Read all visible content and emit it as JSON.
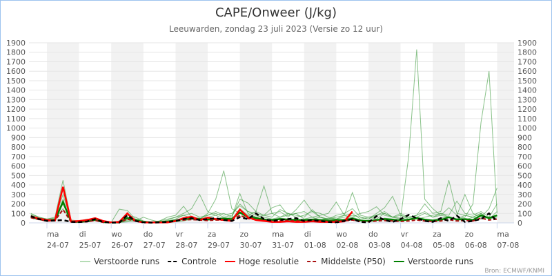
{
  "chart_data": {
    "type": "line",
    "title": "CAPE/Onweer (J/kg)",
    "subtitle": "Leeuwarden, zondag 23 juli 2023 (Versie zo 12 uur)",
    "source": "Bron: ECMWF/KNMI",
    "ylim": [
      0,
      1900
    ],
    "y_ticks": [
      0,
      100,
      200,
      300,
      400,
      500,
      600,
      700,
      800,
      900,
      1000,
      1100,
      1200,
      1300,
      1400,
      1500,
      1600,
      1700,
      1800,
      1900
    ],
    "grid": true,
    "legend_placement": "bottom",
    "time_start": "23-07 12 uur",
    "time_step_hours": 6,
    "x_ticks": [
      {
        "day": "ma",
        "date": "24-07",
        "shaded": true
      },
      {
        "day": "di",
        "date": "25-07",
        "shaded": false
      },
      {
        "day": "wo",
        "date": "26-07",
        "shaded": true
      },
      {
        "day": "do",
        "date": "27-07",
        "shaded": false
      },
      {
        "day": "vr",
        "date": "28-07",
        "shaded": true
      },
      {
        "day": "za",
        "date": "29-07",
        "shaded": false
      },
      {
        "day": "zo",
        "date": "30-07",
        "shaded": true
      },
      {
        "day": "ma",
        "date": "31-07",
        "shaded": false
      },
      {
        "day": "di",
        "date": "01-08",
        "shaded": true
      },
      {
        "day": "wo",
        "date": "02-08",
        "shaded": false
      },
      {
        "day": "do",
        "date": "03-08",
        "shaded": true
      },
      {
        "day": "vr",
        "date": "04-08",
        "shaded": false
      },
      {
        "day": "za",
        "date": "05-08",
        "shaded": true
      },
      {
        "day": "zo",
        "date": "06-08",
        "shaded": false
      },
      {
        "day": "ma",
        "date": "07-08",
        "shaded": true
      }
    ],
    "legend": [
      {
        "label": "Verstoorde runs",
        "color": "#b5dcb5",
        "style": "solid"
      },
      {
        "label": "Controle",
        "color": "#000000",
        "style": "dashed"
      },
      {
        "label": "Hoge resolutie",
        "color": "#ff0000",
        "style": "solid"
      },
      {
        "label": "Middelste (P50)",
        "color": "#aa1111",
        "style": "dashed"
      },
      {
        "label": "Verstoorde runs",
        "color": "#008000",
        "style": "solid"
      }
    ],
    "members": [
      [
        90,
        60,
        40,
        60,
        450,
        30,
        20,
        25,
        40,
        10,
        5,
        5,
        10,
        20,
        60,
        30,
        10,
        5,
        10,
        20,
        40,
        30,
        60,
        80,
        40,
        60,
        310,
        100,
        60,
        40,
        30,
        50,
        40,
        20,
        30,
        40,
        60,
        30,
        20,
        40,
        60,
        30,
        20,
        30,
        50,
        40,
        20,
        30,
        60,
        40,
        30,
        50,
        60,
        40,
        60,
        200,
        1060,
        1600,
        100
      ],
      [
        80,
        50,
        30,
        40,
        300,
        20,
        15,
        20,
        30,
        10,
        5,
        5,
        20,
        30,
        10,
        5,
        10,
        20,
        30,
        40,
        60,
        50,
        40,
        30,
        60,
        80,
        200,
        120,
        80,
        60,
        40,
        60,
        80,
        100,
        40,
        60,
        30,
        50,
        40,
        60,
        80,
        60,
        40,
        80,
        100,
        60,
        50,
        700,
        1830,
        250,
        150,
        80,
        60,
        40,
        30,
        60,
        100,
        40,
        60
      ],
      [
        60,
        40,
        30,
        30,
        250,
        15,
        10,
        30,
        40,
        15,
        5,
        5,
        30,
        40,
        20,
        10,
        10,
        20,
        40,
        80,
        50,
        40,
        100,
        250,
        550,
        150,
        100,
        80,
        120,
        390,
        100,
        60,
        100,
        80,
        60,
        140,
        60,
        40,
        80,
        100,
        150,
        60,
        40,
        100,
        160,
        280,
        80,
        60,
        40,
        60,
        80,
        100,
        60,
        40,
        80,
        60,
        40,
        60,
        80
      ],
      [
        70,
        50,
        40,
        40,
        200,
        20,
        20,
        40,
        30,
        10,
        5,
        145,
        130,
        40,
        10,
        5,
        20,
        60,
        80,
        175,
        60,
        40,
        80,
        100,
        60,
        40,
        150,
        80,
        60,
        80,
        100,
        120,
        60,
        140,
        240,
        120,
        60,
        40,
        60,
        80,
        100,
        40,
        60,
        80,
        120,
        60,
        40,
        60,
        80,
        200,
        100,
        120,
        450,
        100,
        80,
        60,
        100,
        40,
        120
      ],
      [
        100,
        60,
        40,
        50,
        350,
        20,
        15,
        20,
        40,
        10,
        5,
        10,
        80,
        60,
        20,
        10,
        10,
        30,
        60,
        100,
        150,
        300,
        120,
        80,
        100,
        60,
        250,
        210,
        120,
        80,
        60,
        140,
        100,
        60,
        80,
        120,
        100,
        60,
        40,
        80,
        320,
        80,
        60,
        40,
        100,
        60,
        80,
        40,
        60,
        100,
        60,
        80,
        160,
        80,
        300,
        100,
        60,
        150,
        370
      ],
      [
        80,
        50,
        30,
        40,
        150,
        20,
        20,
        30,
        40,
        15,
        5,
        20,
        60,
        30,
        10,
        10,
        20,
        40,
        60,
        80,
        100,
        60,
        80,
        120,
        80,
        100,
        180,
        120,
        100,
        80,
        160,
        190,
        80,
        100,
        120,
        60,
        80,
        100,
        220,
        80,
        60,
        100,
        120,
        170,
        80,
        60,
        100,
        60,
        80,
        120,
        60,
        100,
        80,
        230,
        100,
        80,
        120,
        60,
        200
      ]
    ],
    "mean": [
      60,
      40,
      25,
      30,
      220,
      15,
      10,
      15,
      30,
      8,
      3,
      5,
      50,
      30,
      8,
      5,
      8,
      15,
      25,
      40,
      45,
      40,
      35,
      40,
      45,
      40,
      110,
      60,
      50,
      35,
      30,
      40,
      35,
      30,
      30,
      35,
      30,
      25,
      30,
      30,
      45,
      25,
      20,
      30,
      40,
      35,
      25,
      35,
      50,
      35,
      25,
      30,
      60,
      35,
      40,
      30,
      80,
      50,
      80
    ],
    "p50": [
      55,
      35,
      20,
      25,
      140,
      10,
      8,
      12,
      25,
      5,
      2,
      3,
      40,
      20,
      5,
      3,
      5,
      10,
      20,
      30,
      35,
      30,
      25,
      30,
      30,
      30,
      80,
      45,
      35,
      25,
      20,
      25,
      25,
      20,
      20,
      25,
      20,
      15,
      20,
      20,
      30,
      15,
      12,
      20,
      25,
      20,
      15,
      20,
      30,
      20,
      15,
      20,
      35,
      20,
      25,
      20,
      50,
      30,
      40
    ],
    "control": [
      70,
      40,
      20,
      25,
      30,
      10,
      8,
      15,
      40,
      10,
      3,
      3,
      80,
      20,
      5,
      3,
      5,
      10,
      20,
      40,
      50,
      30,
      40,
      50,
      30,
      20,
      60,
      40,
      100,
      40,
      20,
      30,
      40,
      50,
      20,
      30,
      20,
      10,
      5,
      20,
      40,
      10,
      5,
      70,
      30,
      10,
      40,
      85,
      50,
      20,
      10,
      50,
      20,
      75,
      10,
      20,
      40,
      100,
      20
    ],
    "high_res": [
      70,
      45,
      30,
      25,
      380,
      15,
      20,
      30,
      50,
      20,
      5,
      10,
      100,
      20,
      5,
      5,
      5,
      5,
      20,
      50,
      65,
      30,
      55,
      40,
      30,
      20,
      140,
      60,
      30,
      20,
      10,
      10,
      15,
      10,
      10,
      15,
      10,
      10,
      10,
      15,
      120
    ]
  }
}
